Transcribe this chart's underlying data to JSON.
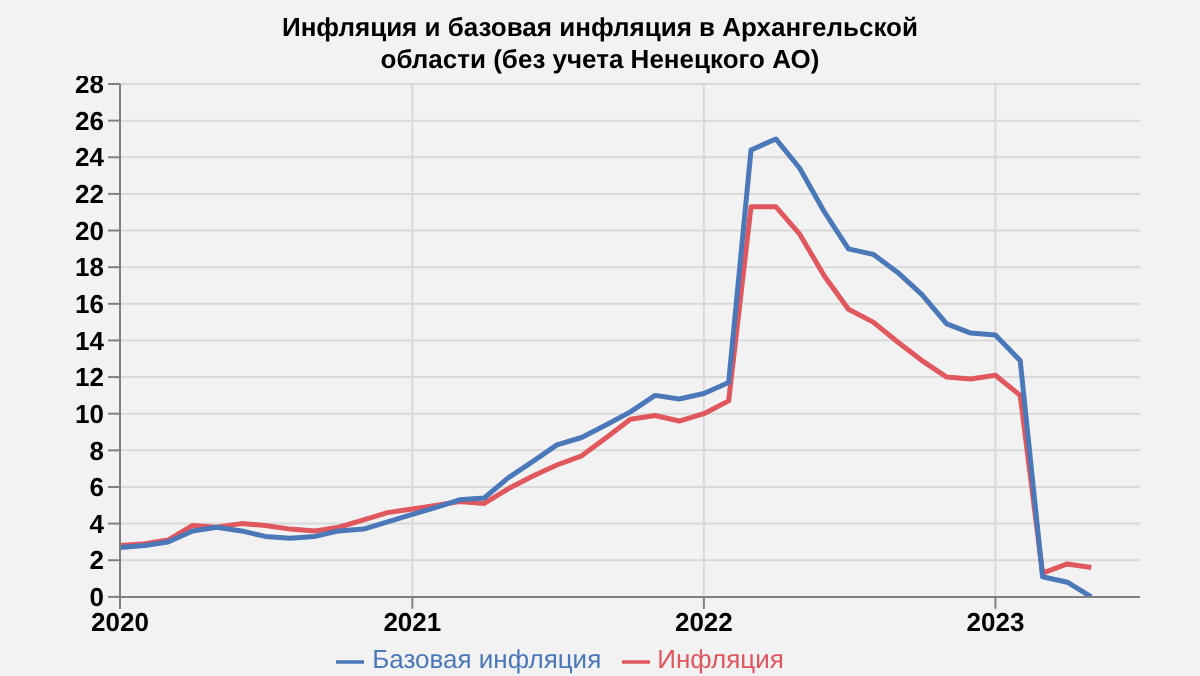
{
  "chart_data": {
    "type": "line",
    "title": "Инфляция и базовая инфляция в Архангельской области (без учета Ненецкого АО)",
    "x": [
      "2020-01",
      "2020-02",
      "2020-03",
      "2020-04",
      "2020-05",
      "2020-06",
      "2020-07",
      "2020-08",
      "2020-09",
      "2020-10",
      "2020-11",
      "2020-12",
      "2021-01",
      "2021-02",
      "2021-03",
      "2021-04",
      "2021-05",
      "2021-06",
      "2021-07",
      "2021-08",
      "2021-09",
      "2021-10",
      "2021-11",
      "2021-12",
      "2022-01",
      "2022-02",
      "2022-03",
      "2022-04",
      "2022-05",
      "2022-06",
      "2022-07",
      "2022-08",
      "2022-09",
      "2022-10",
      "2022-11",
      "2022-12",
      "2023-01",
      "2023-02",
      "2023-03",
      "2023-04",
      "2023-05"
    ],
    "series": [
      {
        "name": "Инфляция",
        "color": "#e0575e",
        "values": [
          2.8,
          2.9,
          3.1,
          3.9,
          3.8,
          4.0,
          3.9,
          3.7,
          3.6,
          3.8,
          4.2,
          4.6,
          4.8,
          5.0,
          5.2,
          5.1,
          5.9,
          6.6,
          7.2,
          7.7,
          8.7,
          9.7,
          9.9,
          9.6,
          10.0,
          10.7,
          21.3,
          21.3,
          19.8,
          17.5,
          15.7,
          15.0,
          13.9,
          12.9,
          12.0,
          11.9,
          12.1,
          11.0,
          1.3,
          1.8,
          1.6
        ]
      },
      {
        "name": "Базовая инфляция",
        "color": "#4a78b8",
        "values": [
          2.7,
          2.8,
          3.0,
          3.6,
          3.8,
          3.6,
          3.3,
          3.2,
          3.3,
          3.6,
          3.7,
          4.1,
          4.5,
          4.9,
          5.3,
          5.4,
          6.5,
          7.4,
          8.3,
          8.7,
          9.4,
          10.1,
          11.0,
          10.8,
          11.1,
          11.7,
          24.4,
          25.0,
          23.4,
          21.0,
          19.0,
          18.7,
          17.7,
          16.5,
          14.9,
          14.4,
          14.3,
          12.9,
          1.1,
          0.8,
          0.0
        ]
      }
    ],
    "xlim": [
      "2020-01",
      "2023-07"
    ],
    "xticks": [
      {
        "value": "2020",
        "label": "2020"
      },
      {
        "value": "2021",
        "label": "2021"
      },
      {
        "value": "2022",
        "label": "2022"
      },
      {
        "value": "2023",
        "label": "2023"
      }
    ],
    "ylim": [
      0,
      28
    ],
    "yticks": [
      0,
      2,
      4,
      6,
      8,
      10,
      12,
      14,
      16,
      18,
      20,
      22,
      24,
      26,
      28
    ],
    "grid": true,
    "legend": "bottom",
    "marker": "none",
    "line_style": "solid"
  }
}
